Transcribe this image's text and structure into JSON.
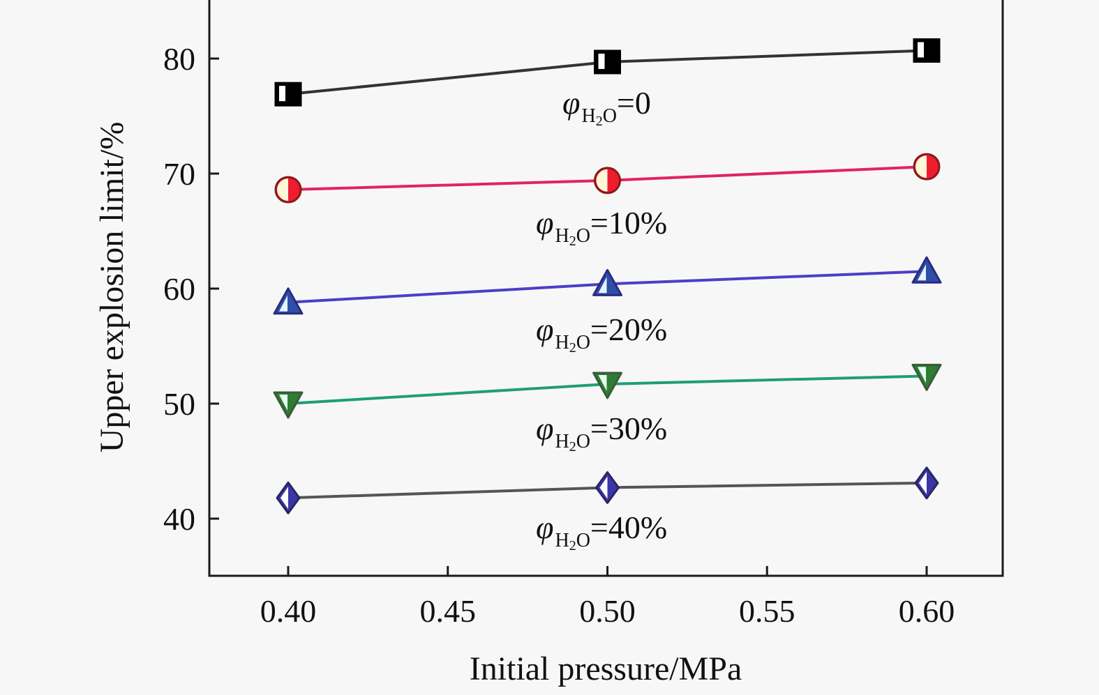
{
  "chart_data": {
    "type": "line",
    "title": "",
    "xlabel": "Initial pressure/MPa",
    "ylabel": "Upper explosion limit/%",
    "x": [
      0.4,
      0.5,
      0.6
    ],
    "xlim": [
      0.375,
      0.625
    ],
    "ylim": [
      35,
      85
    ],
    "xticks": [
      0.4,
      0.45,
      0.5,
      0.55,
      0.6
    ],
    "xtick_labels": [
      "0.40",
      "0.45",
      "0.50",
      "0.55",
      "0.60"
    ],
    "yticks": [
      40,
      50,
      60,
      70,
      80
    ],
    "ytick_labels": [
      "40",
      "50",
      "60",
      "70",
      "80"
    ],
    "grid": false,
    "legend": "inline labels under each series",
    "series": [
      {
        "name": "φH2O=0",
        "label_symbol": "φ",
        "label_sub": "H",
        "label_sub2": "2",
        "label_sub3": "O",
        "label_value": "=0",
        "values": [
          76.9,
          79.7,
          80.7
        ],
        "marker": "square",
        "line_color": "#333333",
        "marker_color": "#000000"
      },
      {
        "name": "φH2O=10%",
        "label_symbol": "φ",
        "label_sub": "H",
        "label_sub2": "2",
        "label_sub3": "O",
        "label_value": "=10%",
        "values": [
          68.6,
          69.4,
          70.6
        ],
        "marker": "circle",
        "line_color": "#e0245e",
        "marker_color": "#ee1c2e"
      },
      {
        "name": "φH2O=20%",
        "label_symbol": "φ",
        "label_sub": "H",
        "label_sub2": "2",
        "label_sub3": "O",
        "label_value": "=20%",
        "values": [
          58.8,
          60.4,
          61.5
        ],
        "marker": "triangle-up",
        "line_color": "#4b3fc7",
        "marker_color": "#2e4fa8"
      },
      {
        "name": "φH2O=30%",
        "label_symbol": "φ",
        "label_sub": "H",
        "label_sub2": "2",
        "label_sub3": "O",
        "label_value": "=30%",
        "values": [
          50.0,
          51.7,
          52.4
        ],
        "marker": "triangle-down",
        "line_color": "#1f9e73",
        "marker_color": "#2e7d32"
      },
      {
        "name": "φH2O=40%",
        "label_symbol": "φ",
        "label_sub": "H",
        "label_sub2": "2",
        "label_sub3": "O",
        "label_value": "=40%",
        "values": [
          41.8,
          42.7,
          43.1
        ],
        "marker": "diamond",
        "line_color": "#555555",
        "marker_color": "#3b35a8"
      }
    ]
  }
}
